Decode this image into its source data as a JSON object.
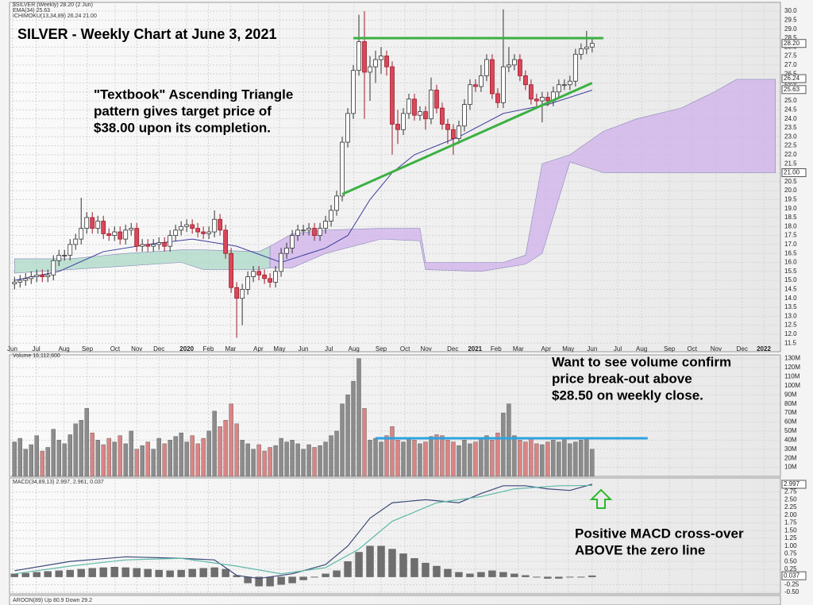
{
  "chart_data": [
    {
      "type": "candlestick",
      "title": "SILVER - Weekly Chart at June 3, 2021",
      "legend": [
        "$SILVER (Weekly) 28.20 (2 Jun)",
        "EMA(34) 25.63",
        "ICHIMOKU(13,34,89) 26.24 21.00"
      ],
      "annotation": [
        "\"Textbook\" Ascending Triangle",
        "pattern gives target price of",
        "$38.00 upon its completion."
      ],
      "grid": true,
      "xlim": [
        -0.9,
        137.9
      ],
      "xticks": [
        {
          "value": -0.4,
          "label": "Jun"
        },
        {
          "value": 3.9,
          "label": "Jul"
        },
        {
          "value": 8.9,
          "label": "Aug"
        },
        {
          "value": 13.1,
          "label": "Sep"
        },
        {
          "value": 18.1,
          "label": "Oct"
        },
        {
          "value": 22,
          "label": "Nov"
        },
        {
          "value": 26,
          "label": "Dec"
        },
        {
          "value": 31,
          "label": "2020"
        },
        {
          "value": 34.9,
          "label": "Feb"
        },
        {
          "value": 38.9,
          "label": "Mar"
        },
        {
          "value": 43.9,
          "label": "Apr"
        },
        {
          "value": 47.7,
          "label": "May"
        },
        {
          "value": 52,
          "label": "Jun"
        },
        {
          "value": 56.6,
          "label": "Jul"
        },
        {
          "value": 61.1,
          "label": "Aug"
        },
        {
          "value": 66,
          "label": "Sep"
        },
        {
          "value": 70.3,
          "label": "Oct"
        },
        {
          "value": 74.1,
          "label": "Nov"
        },
        {
          "value": 78.9,
          "label": "Dec"
        },
        {
          "value": 82.9,
          "label": "2021"
        },
        {
          "value": 86.7,
          "label": "Feb"
        },
        {
          "value": 90.7,
          "label": "Mar"
        },
        {
          "value": 95.7,
          "label": "Apr"
        },
        {
          "value": 99.7,
          "label": "May"
        },
        {
          "value": 104,
          "label": "Jun"
        },
        {
          "value": 108.6,
          "label": "Jul"
        },
        {
          "value": 112.9,
          "label": "Aug"
        },
        {
          "value": 117.9,
          "label": "Sep"
        },
        {
          "value": 122,
          "label": "Oct"
        },
        {
          "value": 126.3,
          "label": "Nov"
        },
        {
          "value": 131,
          "label": "Dec"
        },
        {
          "value": 134.9,
          "label": "2022"
        }
      ],
      "ylim": [
        11.2,
        30.4
      ],
      "yticks": [
        11.5,
        {
          "value": 12,
          "label": "12.0"
        },
        12.5,
        {
          "value": 13,
          "label": "13.0"
        },
        13.5,
        {
          "value": 14,
          "label": "14.0"
        },
        14.5,
        {
          "value": 15,
          "label": "15.0"
        },
        15.5,
        {
          "value": 16,
          "label": "16.0"
        },
        16.5,
        {
          "value": 17,
          "label": "17.0"
        },
        17.5,
        {
          "value": 18,
          "label": "18.0"
        },
        18.5,
        {
          "value": 19,
          "label": "19.0"
        },
        19.5,
        {
          "value": 20,
          "label": "20.0"
        },
        20.5,
        {
          "value": 21,
          "label": "21.0"
        },
        21.5,
        {
          "value": 22,
          "label": "22.0"
        },
        22.5,
        {
          "value": 23,
          "label": "23.0"
        },
        23.5,
        {
          "value": 24,
          "label": "24.0"
        },
        24.5,
        {
          "value": 25,
          "label": "25.0"
        },
        25.5,
        {
          "value": 26,
          "label": "26.0"
        },
        26.5,
        {
          "value": 27,
          "label": "27.0"
        },
        27.5,
        {
          "value": 28,
          "label": "28.0"
        },
        28.5,
        {
          "value": 29,
          "label": "29.0"
        },
        29.5,
        {
          "value": 30,
          "label": "30.0"
        }
      ],
      "open": [
        14.8,
        14.9,
        15.0,
        15.1,
        15.2,
        15.3,
        15.2,
        15.3,
        16.1,
        16.4,
        16.4,
        17.0,
        17.3,
        17.9,
        18.5,
        17.9,
        18.3,
        17.6,
        17.5,
        17.7,
        17.3,
        17.8,
        17.9,
        16.9,
        17.0,
        16.9,
        17.0,
        17.1,
        16.9,
        17.5,
        17.8,
        18.0,
        18.1,
        17.9,
        17.7,
        17.6,
        17.7,
        18.4,
        17.8,
        16.5,
        14.6,
        14.0,
        14.5,
        15.2,
        15.5,
        15.3,
        15.1,
        14.9,
        15.5,
        16.5,
        16.8,
        17.5,
        17.8,
        17.8,
        17.9,
        17.5,
        17.9,
        18.3,
        18.9,
        19.7,
        22.7,
        24.3,
        26.7,
        28.3,
        26.6,
        26.9,
        27.3,
        27.5,
        26.9,
        23.7,
        23.4,
        24.3,
        25.1,
        24.2,
        24.4,
        24.0,
        25.6,
        24.6,
        23.7,
        23.4,
        22.9,
        23.6,
        24.8,
        25.9,
        25.8,
        26.4,
        27.3,
        25.4,
        24.9,
        26.9,
        27.0,
        27.3,
        26.4,
        25.9,
        25.1,
        25.0,
        25.2,
        25.0,
        25.5,
        25.9,
        25.9,
        26.1,
        27.6,
        27.9,
        28.0
      ],
      "high": [
        15.2,
        15.3,
        15.4,
        15.5,
        15.6,
        15.6,
        15.6,
        16.4,
        16.7,
        16.7,
        17.3,
        17.6,
        19.6,
        18.8,
        18.8,
        18.6,
        18.6,
        17.9,
        18.0,
        18.0,
        18.1,
        18.2,
        18.2,
        17.3,
        17.3,
        17.3,
        17.4,
        17.4,
        17.8,
        18.1,
        18.3,
        18.4,
        18.4,
        18.2,
        18.0,
        18.0,
        18.9,
        18.7,
        18.1,
        16.8,
        14.9,
        14.8,
        15.5,
        15.8,
        15.8,
        15.6,
        15.4,
        15.8,
        16.8,
        17.1,
        17.8,
        18.1,
        18.1,
        18.2,
        18.2,
        18.2,
        18.6,
        19.2,
        20.0,
        23.0,
        24.6,
        27.0,
        29.8,
        30.0,
        27.5,
        27.8,
        28.0,
        27.8,
        27.2,
        24.5,
        24.6,
        25.4,
        25.4,
        24.7,
        24.7,
        26.3,
        25.9,
        24.9,
        24.0,
        23.7,
        23.9,
        25.1,
        26.2,
        26.2,
        27.0,
        27.6,
        27.6,
        25.7,
        30.1,
        28.0,
        27.6,
        27.6,
        26.7,
        26.2,
        25.4,
        25.5,
        25.5,
        25.8,
        26.2,
        26.2,
        26.4,
        27.9,
        28.2,
        28.9,
        28.5
      ],
      "low": [
        14.5,
        14.6,
        14.7,
        14.8,
        14.9,
        14.9,
        14.9,
        15.0,
        15.8,
        16.1,
        16.1,
        16.7,
        17.0,
        17.6,
        17.6,
        17.6,
        17.3,
        17.2,
        17.2,
        17.0,
        17.0,
        17.5,
        16.6,
        16.6,
        16.6,
        16.6,
        16.7,
        16.6,
        16.6,
        17.2,
        17.5,
        17.7,
        17.6,
        17.4,
        17.3,
        17.3,
        17.4,
        17.5,
        16.2,
        14.3,
        11.8,
        12.5,
        14.2,
        14.9,
        15.0,
        14.8,
        14.6,
        14.6,
        15.2,
        16.2,
        16.5,
        17.2,
        17.5,
        17.5,
        17.2,
        17.2,
        17.6,
        18.0,
        18.6,
        19.4,
        22.4,
        24.0,
        26.4,
        24.0,
        25.0,
        26.0,
        26.5,
        26.4,
        22.0,
        22.6,
        23.1,
        24.0,
        23.9,
        23.9,
        23.4,
        23.7,
        24.3,
        23.4,
        22.6,
        22.0,
        22.6,
        23.3,
        24.5,
        25.5,
        25.5,
        26.1,
        25.1,
        24.6,
        24.6,
        26.6,
        26.7,
        26.1,
        25.6,
        24.8,
        24.7,
        23.8,
        24.7,
        24.7,
        25.2,
        25.6,
        25.6,
        25.8,
        27.3,
        27.6,
        27.7
      ],
      "close": [
        14.9,
        15.0,
        15.1,
        15.2,
        15.3,
        15.2,
        15.3,
        16.1,
        16.4,
        16.4,
        17.0,
        17.3,
        17.9,
        18.5,
        17.9,
        18.3,
        17.6,
        17.5,
        17.7,
        17.3,
        17.8,
        17.9,
        16.9,
        17.0,
        16.9,
        17.0,
        17.1,
        16.9,
        17.5,
        17.8,
        18.0,
        18.1,
        17.9,
        17.7,
        17.6,
        17.7,
        18.4,
        17.8,
        16.5,
        14.6,
        14.0,
        14.5,
        15.2,
        15.5,
        15.3,
        15.1,
        14.9,
        15.5,
        16.5,
        16.8,
        17.5,
        17.8,
        17.8,
        17.9,
        17.5,
        17.9,
        18.3,
        18.9,
        19.7,
        22.7,
        24.3,
        26.7,
        28.3,
        26.6,
        26.9,
        27.3,
        27.5,
        26.9,
        23.7,
        23.4,
        24.3,
        25.1,
        24.2,
        24.4,
        24.0,
        25.6,
        24.6,
        23.7,
        23.4,
        22.9,
        23.6,
        24.8,
        25.9,
        25.8,
        26.4,
        27.3,
        25.4,
        24.9,
        26.9,
        27.0,
        27.3,
        26.4,
        25.9,
        25.1,
        25.0,
        25.2,
        25.0,
        25.5,
        25.9,
        25.9,
        26.1,
        27.6,
        27.9,
        28.0,
        28.2
      ],
      "up_color": "#ffffff",
      "down_color": "#d9485a",
      "ema": {
        "color": "#3d3d9e",
        "x": [
          0,
          8,
          16,
          24,
          32,
          40,
          48,
          56,
          60,
          64,
          68,
          72,
          80,
          88,
          96,
          104
        ],
        "values": [
          15.0,
          15.5,
          16.6,
          17.0,
          17.3,
          16.9,
          16.0,
          16.8,
          17.5,
          19.5,
          21.0,
          22.0,
          23.0,
          24.3,
          24.8,
          25.6
        ]
      },
      "clouds": [
        {
          "color": "#a9d8c6",
          "x": [
            0,
            10,
            20,
            30,
            34,
            44,
            46
          ],
          "upper": [
            16.2,
            16.2,
            16.5,
            16.7,
            16.7,
            16.6,
            16.9
          ],
          "lower": [
            15.4,
            15.6,
            15.8,
            16.0,
            15.6,
            15.6,
            15.7
          ]
        },
        {
          "color": "#cfb0ea",
          "x": [
            46,
            50,
            56,
            66,
            73,
            74,
            84,
            88,
            92,
            95,
            100,
            106,
            112,
            120,
            126,
            130,
            134,
            137
          ],
          "upper": [
            16.9,
            17.6,
            17.8,
            17.9,
            17.9,
            16.0,
            16.0,
            16.0,
            16.4,
            21.5,
            22.0,
            23.3,
            24.0,
            24.6,
            25.5,
            26.2,
            26.2,
            26.2
          ],
          "lower": [
            15.7,
            15.7,
            16.5,
            17.3,
            17.2,
            15.6,
            15.5,
            15.7,
            15.9,
            16.5,
            21.6,
            21.0,
            21.0,
            21.0,
            21.0,
            21.0,
            21.0,
            21.0
          ]
        }
      ],
      "lines": [
        {
          "color": "#3cb043",
          "x": [
            61,
            106
          ],
          "values": [
            28.5,
            28.5
          ]
        },
        {
          "color": "#3cb043",
          "x": [
            59,
            104
          ],
          "values": [
            19.8,
            26.0
          ]
        }
      ],
      "axis_tags": [
        {
          "value": 28.2,
          "label": "28.20"
        },
        26.24,
        25.63,
        {
          "value": 21,
          "label": "21.00"
        }
      ]
    },
    {
      "type": "bar",
      "legend": [
        "Volume 16,112,600"
      ],
      "annotation": [
        "Want to see volume confirm",
        "price break-out above",
        "$28.50 on weekly close."
      ],
      "ylim": [
        0,
        134
      ],
      "yticks": [
        {
          "value": 10,
          "label": "10M"
        },
        {
          "value": 20,
          "label": "20M"
        },
        {
          "value": 30,
          "label": "30M"
        },
        {
          "value": 40,
          "label": "40M"
        },
        {
          "value": 50,
          "label": "50M"
        },
        {
          "value": 60,
          "label": "60M"
        },
        {
          "value": 70,
          "label": "70M"
        },
        {
          "value": 80,
          "label": "80M"
        },
        {
          "value": 90,
          "label": "90M"
        },
        {
          "value": 100,
          "label": "100M"
        },
        {
          "value": 110,
          "label": "110M"
        },
        {
          "value": 120,
          "label": "120M"
        },
        {
          "value": 130,
          "label": "130M"
        }
      ],
      "values": [
        38,
        42,
        30,
        35,
        45,
        28,
        32,
        52,
        40,
        36,
        46,
        58,
        62,
        75,
        48,
        40,
        35,
        42,
        38,
        45,
        36,
        50,
        30,
        34,
        38,
        30,
        42,
        36,
        40,
        44,
        48,
        38,
        45,
        36,
        42,
        50,
        72,
        55,
        62,
        80,
        58,
        40,
        36,
        30,
        35,
        28,
        32,
        34,
        42,
        38,
        40,
        36,
        30,
        35,
        32,
        34,
        38,
        45,
        50,
        80,
        90,
        105,
        130,
        75,
        40,
        42,
        38,
        45,
        55,
        40,
        38,
        42,
        40,
        36,
        38,
        44,
        46,
        45,
        40,
        38,
        34,
        40,
        36,
        38,
        42,
        45,
        40,
        48,
        70,
        80,
        45,
        40,
        38,
        42,
        36,
        35,
        38,
        40,
        38,
        42,
        36,
        38,
        40,
        42,
        30
      ],
      "up_color": "#8c8c8c",
      "down_color": "#d98585",
      "level": {
        "value": 42,
        "x": [
          65,
          114
        ],
        "color": "#2ea3e0"
      }
    },
    {
      "type": "line",
      "legend": [
        "MACD(34,89,13) 2.997, 2.961, 0.037"
      ],
      "annotation": [
        "Positive MACD cross-over",
        "ABOVE the zero line"
      ],
      "ylim": [
        -0.55,
        3.1
      ],
      "yticks": [
        {
          "value": -0.5,
          "label": "-0.50"
        },
        -0.25,
        0.25,
        {
          "value": 0.5,
          "label": "0.50"
        },
        0.75,
        {
          "value": 1,
          "label": "1.00"
        },
        1.25,
        {
          "value": 1.5,
          "label": "1.50"
        },
        1.75,
        {
          "value": 2,
          "label": "2.00"
        },
        2.25,
        {
          "value": 2.5,
          "label": "2.50"
        },
        2.75
      ],
      "series": [
        {
          "color": "#3b4a7a",
          "x": [
            0,
            10,
            20,
            30,
            36,
            40,
            44,
            50,
            56,
            60,
            64,
            68,
            74,
            80,
            84,
            88,
            92,
            96,
            100,
            104
          ],
          "values": [
            0.2,
            0.5,
            0.65,
            0.6,
            0.55,
            0.05,
            -0.05,
            0.1,
            0.4,
            1.0,
            1.9,
            2.4,
            2.5,
            2.4,
            2.7,
            2.95,
            2.95,
            2.85,
            2.8,
            3.0
          ]
        },
        {
          "color": "#5fb8a8",
          "x": [
            0,
            10,
            20,
            30,
            40,
            48,
            56,
            62,
            68,
            76,
            84,
            90,
            98,
            104
          ],
          "values": [
            0.1,
            0.35,
            0.55,
            0.6,
            0.35,
            0.1,
            0.3,
            0.9,
            1.8,
            2.4,
            2.6,
            2.85,
            2.95,
            2.96
          ]
        }
      ],
      "histogram": {
        "color": "#6e6e6e",
        "x": [
          0,
          2,
          4,
          6,
          8,
          10,
          12,
          14,
          16,
          18,
          20,
          22,
          24,
          26,
          28,
          30,
          32,
          34,
          36,
          38,
          40,
          42,
          44,
          46,
          48,
          50,
          52,
          54,
          56,
          58,
          60,
          62,
          64,
          66,
          68,
          70,
          72,
          74,
          76,
          78,
          80,
          82,
          84,
          86,
          88,
          90,
          92,
          94,
          96,
          98,
          100,
          102,
          104
        ],
        "values": [
          0.1,
          0.12,
          0.15,
          0.18,
          0.2,
          0.22,
          0.25,
          0.28,
          0.3,
          0.32,
          0.3,
          0.28,
          0.25,
          0.22,
          0.2,
          0.22,
          0.25,
          0.28,
          0.3,
          0.25,
          0.05,
          -0.2,
          -0.3,
          -0.3,
          -0.25,
          -0.2,
          -0.1,
          0.0,
          0.1,
          0.2,
          0.5,
          0.8,
          1.0,
          1.0,
          0.9,
          0.75,
          0.6,
          0.45,
          0.35,
          0.25,
          0.15,
          0.1,
          0.15,
          0.2,
          0.15,
          0.1,
          0.05,
          0.0,
          -0.05,
          -0.05,
          0.0,
          0.0,
          0.04
        ]
      },
      "axis_tags": [
        2.997,
        0.037
      ]
    }
  ],
  "aroon_label": "AROON(89) Up 80.9 Down 29.2"
}
